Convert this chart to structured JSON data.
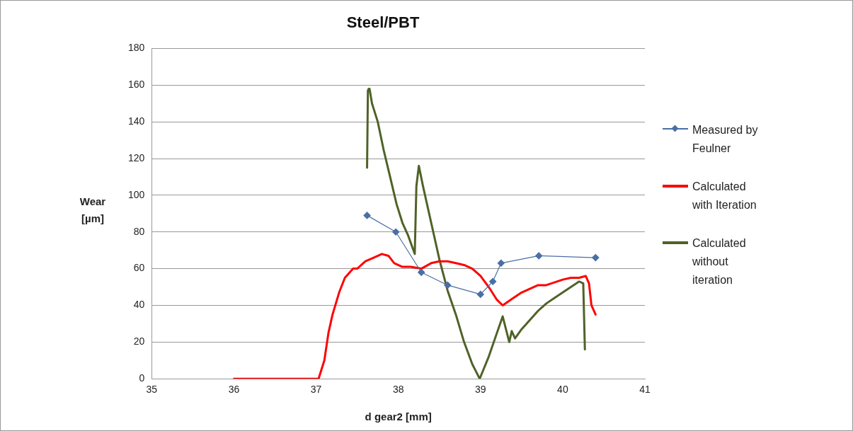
{
  "chart_data": {
    "type": "line",
    "title": "Steel/PBT",
    "xlabel": "d gear2 [mm]",
    "ylabel": "Wear [µm]",
    "xlim": [
      35,
      41
    ],
    "xticks": [
      35,
      36,
      37,
      38,
      39,
      40,
      41
    ],
    "ylim": [
      0,
      180
    ],
    "yticks": [
      0,
      20,
      40,
      60,
      80,
      100,
      120,
      140,
      160,
      180
    ],
    "grid": "y",
    "legend": "right",
    "line_style": "solid",
    "series": [
      {
        "name": "Measured by Feulner",
        "color": "#4a6fa5",
        "marker": "diamond",
        "x": [
          37.62,
          37.97,
          38.28,
          38.6,
          39.0,
          39.15,
          39.25,
          39.71,
          40.4
        ],
        "values": [
          89,
          80,
          58,
          51,
          46,
          53,
          63,
          67,
          66
        ]
      },
      {
        "name": "Calculated with Iteration",
        "color": "#ff0000",
        "marker": "none",
        "x": [
          36,
          37.03,
          37.1,
          37.15,
          37.2,
          37.28,
          37.35,
          37.45,
          37.5,
          37.6,
          37.7,
          37.8,
          37.88,
          37.95,
          38.05,
          38.15,
          38.28,
          38.4,
          38.5,
          38.6,
          38.7,
          38.8,
          38.9,
          39.0,
          39.1,
          39.2,
          39.27,
          39.4,
          39.5,
          39.6,
          39.7,
          39.8,
          40.0,
          40.1,
          40.2,
          40.28,
          40.32,
          40.35,
          40.4
        ],
        "values": [
          0,
          0,
          10,
          25,
          35,
          47,
          55,
          60,
          60,
          64,
          66,
          68,
          67,
          63,
          61,
          61,
          60,
          63,
          64,
          64,
          63,
          62,
          60,
          56,
          50,
          43,
          40,
          44,
          47,
          49,
          51,
          51,
          54,
          55,
          55,
          56,
          52,
          40,
          35
        ]
      },
      {
        "name": "Calculated without iteration",
        "color": "#4f6228",
        "marker": "none",
        "x": [
          37.62,
          37.63,
          37.64,
          37.65,
          37.68,
          37.75,
          37.82,
          37.9,
          37.98,
          38.05,
          38.12,
          38.2,
          38.22,
          38.25,
          38.3,
          38.4,
          38.5,
          38.6,
          38.7,
          38.8,
          38.9,
          38.99,
          39.1,
          39.2,
          39.27,
          39.35,
          39.38,
          39.42,
          39.5,
          39.6,
          39.7,
          39.8,
          39.9,
          40.0,
          40.1,
          40.2,
          40.25,
          40.27
        ],
        "values": [
          115,
          157,
          158,
          158,
          150,
          140,
          125,
          110,
          95,
          85,
          78,
          68,
          105,
          116,
          105,
          85,
          65,
          48,
          35,
          20,
          8,
          0,
          12,
          25,
          34,
          20,
          26,
          22,
          27,
          32,
          37,
          41,
          44,
          47,
          50,
          53,
          52,
          16
        ]
      }
    ]
  }
}
